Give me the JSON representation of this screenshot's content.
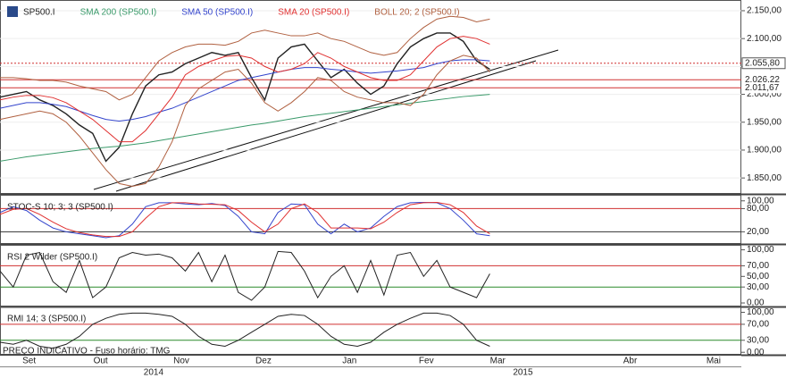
{
  "chart_data": [
    {
      "type": "line",
      "title": "SP500.I",
      "xlim": [
        0,
        56
      ],
      "ylim": [
        1823,
        2166
      ],
      "yticks": [
        {
          "value": 1850,
          "label": "1.850,00"
        },
        {
          "value": 1900,
          "label": "1.900,00"
        },
        {
          "value": 1950,
          "label": "1.950,00"
        },
        {
          "value": 2000,
          "label": "2.000,00"
        },
        {
          "value": 2050,
          "label": "2.050,00"
        },
        {
          "value": 2100,
          "label": "2.100,00"
        },
        {
          "value": 2150,
          "label": "2.150,00"
        }
      ],
      "hlines": [
        {
          "value": 2055.8,
          "label": "2.055,80",
          "color": "#d03030"
        },
        {
          "value": 2026.22,
          "label": "2.026,22",
          "color": "#d03030"
        },
        {
          "value": 2011.67,
          "label": "2.011,67",
          "color": "#d03030"
        }
      ],
      "series": [
        {
          "name": "SP500.I",
          "color": "#222222",
          "values": [
            1995,
            2000,
            2005,
            1990,
            1980,
            1965,
            1945,
            1930,
            1880,
            1905,
            1965,
            2015,
            2035,
            2040,
            2055,
            2065,
            2075,
            2070,
            2075,
            2030,
            1990,
            2065,
            2085,
            2090,
            2060,
            2030,
            2045,
            2020,
            2000,
            2015,
            2055,
            2085,
            2100,
            2110,
            2110,
            2095,
            2060,
            2045
          ]
        },
        {
          "name": "SMA 200 (SP500.I)",
          "color": "#3a9a6a",
          "values": [
            1880,
            1884,
            1888,
            1891,
            1894,
            1897,
            1900,
            1903,
            1905,
            1907,
            1910,
            1913,
            1917,
            1921,
            1925,
            1929,
            1933,
            1937,
            1941,
            1945,
            1948,
            1952,
            1956,
            1960,
            1963,
            1966,
            1969,
            1972,
            1975,
            1978,
            1981,
            1984,
            1987,
            1990,
            1993,
            1996,
            1998,
            2000
          ]
        },
        {
          "name": "SMA 50 (SP500.I)",
          "color": "#3344cc",
          "values": [
            1975,
            1980,
            1985,
            1985,
            1982,
            1978,
            1970,
            1962,
            1955,
            1952,
            1955,
            1960,
            1968,
            1975,
            1985,
            1995,
            2005,
            2015,
            2025,
            2030,
            2035,
            2040,
            2045,
            2048,
            2048,
            2045,
            2043,
            2040,
            2038,
            2040,
            2042,
            2045,
            2048,
            2055,
            2060,
            2062,
            2062,
            2060
          ]
        },
        {
          "name": "SMA 20 (SP500.I)",
          "color": "#e03030",
          "values": [
            1990,
            1995,
            1998,
            1998,
            1994,
            1985,
            1970,
            1955,
            1935,
            1915,
            1915,
            1935,
            1965,
            1995,
            2035,
            2050,
            2060,
            2068,
            2070,
            2065,
            2050,
            2040,
            2045,
            2055,
            2075,
            2065,
            2050,
            2040,
            2030,
            2025,
            2025,
            2035,
            2060,
            2085,
            2100,
            2104,
            2100,
            2090
          ]
        },
        {
          "name": "BOLL 20; 2 (SP500.I)",
          "color": "#b06040",
          "values": [
            2030,
            2030,
            2028,
            2025,
            2025,
            2022,
            2015,
            2010,
            2005,
            1990,
            2000,
            2030,
            2060,
            2075,
            2085,
            2090,
            2090,
            2088,
            2095,
            2110,
            2115,
            2110,
            2105,
            2105,
            2110,
            2100,
            2095,
            2085,
            2075,
            2070,
            2075,
            2100,
            2120,
            2135,
            2140,
            2138,
            2130,
            2135
          ]
        },
        {
          "color": "#b06040",
          "values": [
            1955,
            1960,
            1965,
            1970,
            1965,
            1950,
            1925,
            1895,
            1865,
            1840,
            1835,
            1840,
            1870,
            1915,
            1980,
            2010,
            2025,
            2040,
            2045,
            2020,
            1985,
            1970,
            1985,
            2005,
            2030,
            2025,
            2005,
            1995,
            1990,
            1985,
            1985,
            1980,
            2000,
            2035,
            2060,
            2070,
            2065,
            2040
          ]
        }
      ]
    },
    {
      "type": "line",
      "title": "STOC-S 10; 3; 3 (SP500.I)",
      "xlim": [
        0,
        56
      ],
      "ylim": [
        -9,
        111
      ],
      "yticks": [
        {
          "value": 20,
          "label": "20,00"
        },
        {
          "value": 80,
          "label": "80,00"
        },
        {
          "value": 100,
          "label": "100,00"
        }
      ],
      "hlines": [
        {
          "value": 80,
          "color": "#d03030"
        },
        {
          "value": 20,
          "color": "#333333"
        }
      ],
      "series": [
        {
          "color": "#3344cc",
          "values": [
            70,
            85,
            75,
            50,
            30,
            20,
            15,
            10,
            5,
            10,
            40,
            85,
            95,
            95,
            92,
            90,
            93,
            88,
            60,
            20,
            15,
            70,
            92,
            90,
            40,
            15,
            40,
            20,
            30,
            60,
            85,
            95,
            96,
            95,
            80,
            50,
            15,
            10
          ]
        },
        {
          "color": "#e03030",
          "values": [
            65,
            78,
            80,
            65,
            45,
            28,
            18,
            12,
            8,
            8,
            20,
            55,
            85,
            95,
            95,
            92,
            91,
            90,
            75,
            45,
            20,
            40,
            80,
            92,
            70,
            30,
            30,
            30,
            28,
            45,
            70,
            90,
            95,
            96,
            90,
            70,
            35,
            15
          ]
        }
      ]
    },
    {
      "type": "line",
      "title": "RSI 2 Wilder (SP500.I)",
      "xlim": [
        0,
        56
      ],
      "ylim": [
        -5,
        106
      ],
      "yticks": [
        {
          "value": 0,
          "label": "0,00"
        },
        {
          "value": 30,
          "label": "30,00"
        },
        {
          "value": 50,
          "label": "50,00"
        },
        {
          "value": 70,
          "label": "70,00"
        },
        {
          "value": 100,
          "label": "100,00"
        }
      ],
      "hlines": [
        {
          "value": 70,
          "color": "#d03030"
        },
        {
          "value": 30,
          "color": "#2a8a2a"
        }
      ],
      "series": [
        {
          "color": "#222222",
          "values": [
            60,
            30,
            90,
            95,
            40,
            20,
            80,
            10,
            30,
            85,
            95,
            90,
            92,
            85,
            60,
            95,
            40,
            90,
            20,
            5,
            30,
            97,
            95,
            60,
            10,
            50,
            70,
            20,
            80,
            15,
            90,
            95,
            50,
            80,
            30,
            20,
            10,
            55
          ]
        }
      ]
    },
    {
      "type": "line",
      "title": "RMI 14; 3 (SP500.I)",
      "footer": "PREÇO INDICATIVO - Fuso horário: TMG",
      "xlim": [
        0,
        56
      ],
      "ylim": [
        -4,
        110
      ],
      "yticks": [
        {
          "value": 0,
          "label": "0,00"
        },
        {
          "value": 30,
          "label": "30,00"
        },
        {
          "value": 70,
          "label": "70,00"
        },
        {
          "value": 100,
          "label": "100,00"
        }
      ],
      "hlines": [
        {
          "value": 70,
          "color": "#d03030"
        },
        {
          "value": 30,
          "color": "#2a8a2a"
        }
      ],
      "series": [
        {
          "color": "#222222",
          "values": [
            25,
            20,
            30,
            15,
            10,
            20,
            40,
            70,
            85,
            95,
            98,
            98,
            95,
            90,
            70,
            40,
            20,
            15,
            30,
            50,
            70,
            90,
            95,
            92,
            70,
            40,
            20,
            15,
            25,
            50,
            70,
            85,
            98,
            98,
            92,
            70,
            30,
            15
          ]
        }
      ],
      "xticks": [
        {
          "value": 2.2,
          "label": "Set"
        },
        {
          "value": 7.6,
          "label": "Out"
        },
        {
          "value": 13.7,
          "label": "Nov"
        },
        {
          "value": 19.9,
          "label": "Dez"
        },
        {
          "value": 26.4,
          "label": "Jan"
        },
        {
          "value": 32.2,
          "label": "Fev"
        },
        {
          "value": 37.6,
          "label": "Mar"
        },
        {
          "value": 47.6,
          "label": "Abr"
        },
        {
          "value": 53.9,
          "label": "Mai"
        }
      ],
      "year_ticks": [
        {
          "value": 11.6,
          "label": "2014"
        },
        {
          "value": 39.5,
          "label": "2015"
        }
      ]
    }
  ]
}
